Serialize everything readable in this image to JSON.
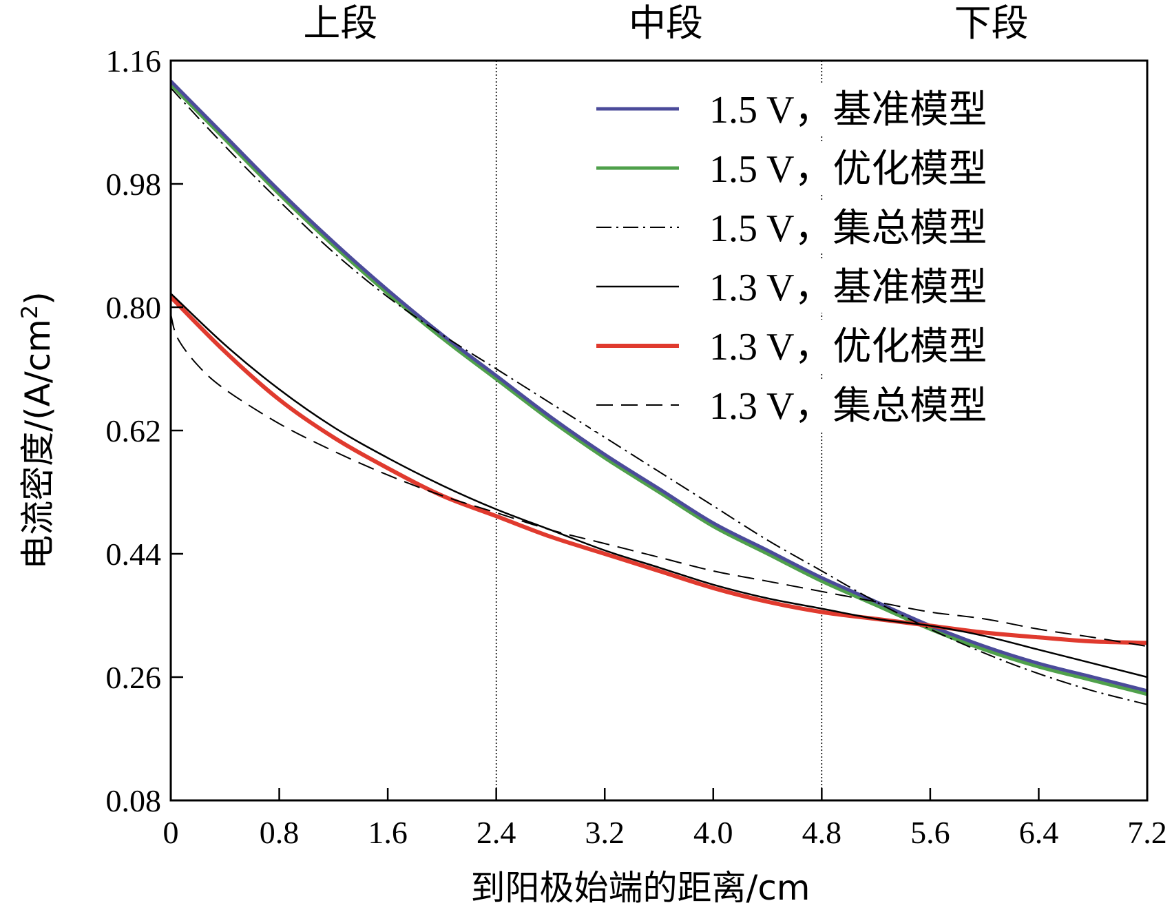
{
  "chart_data": {
    "type": "line",
    "xlabel": "到阳极始端的距离/cm",
    "ylabel": "电流密度/(A/cm",
    "ylabel_sup": "2",
    "ylabel_close": ")",
    "xlim": [
      0,
      7.2
    ],
    "ylim": [
      0.08,
      1.16
    ],
    "x_ticks": [
      0,
      0.8,
      1.6,
      2.4,
      3.2,
      4.0,
      4.8,
      5.6,
      6.4,
      7.2
    ],
    "x_tick_labels": [
      "0",
      "0.8",
      "1.6",
      "2.4",
      "3.2",
      "4.0",
      "4.8",
      "5.6",
      "6.4",
      "7.2"
    ],
    "y_ticks": [
      0.08,
      0.26,
      0.44,
      0.62,
      0.8,
      0.98,
      1.16
    ],
    "y_tick_labels": [
      "0.08",
      "0.26",
      "0.44",
      "0.62",
      "0.80",
      "0.98",
      "1.16"
    ],
    "regions": [
      {
        "label": "上段",
        "x_center": 1.2
      },
      {
        "label": "中段",
        "x_center": 3.6
      },
      {
        "label": "下段",
        "x_center": 6.0
      }
    ],
    "region_dividers": [
      2.4,
      4.8
    ],
    "legend_position": "top-right",
    "series": [
      {
        "name": "1.5 V，基准模型",
        "color": "#4b4b9a",
        "width": 5,
        "dash": "",
        "x": [
          0,
          0.4,
          0.8,
          1.2,
          1.6,
          2.0,
          2.4,
          2.8,
          3.2,
          3.6,
          4.0,
          4.4,
          4.8,
          5.2,
          5.6,
          6.0,
          6.4,
          6.8,
          7.2
        ],
        "y": [
          1.13,
          1.05,
          0.97,
          0.895,
          0.825,
          0.76,
          0.7,
          0.64,
          0.585,
          0.535,
          0.485,
          0.445,
          0.405,
          0.37,
          0.335,
          0.305,
          0.28,
          0.26,
          0.24
        ]
      },
      {
        "name": "1.5 V，优化模型",
        "color": "#4fa04b",
        "width": 5,
        "dash": "",
        "x": [
          0,
          0.4,
          0.8,
          1.2,
          1.6,
          2.0,
          2.4,
          2.8,
          3.2,
          3.6,
          4.0,
          4.4,
          4.8,
          5.2,
          5.6,
          6.0,
          6.4,
          6.8,
          7.2
        ],
        "y": [
          1.125,
          1.045,
          0.965,
          0.89,
          0.82,
          0.755,
          0.695,
          0.635,
          0.58,
          0.53,
          0.48,
          0.44,
          0.4,
          0.365,
          0.33,
          0.3,
          0.275,
          0.255,
          0.235
        ]
      },
      {
        "name": "1.5 V，集总模型",
        "color": "#000000",
        "width": 2,
        "dash": "22,7,3,7",
        "x": [
          0,
          0.4,
          0.8,
          1.2,
          1.6,
          2.0,
          2.4,
          2.8,
          3.2,
          3.6,
          4.0,
          4.4,
          4.8,
          5.2,
          5.6,
          6.0,
          6.4,
          6.8,
          7.2
        ],
        "y": [
          1.12,
          1.035,
          0.955,
          0.88,
          0.815,
          0.76,
          0.71,
          0.66,
          0.61,
          0.56,
          0.51,
          0.46,
          0.415,
          0.37,
          0.33,
          0.295,
          0.265,
          0.24,
          0.22
        ]
      },
      {
        "name": "1.3 V，基准模型",
        "color": "#000000",
        "width": 2.5,
        "dash": "",
        "x": [
          0,
          0.4,
          0.8,
          1.2,
          1.6,
          2.0,
          2.4,
          2.8,
          3.2,
          3.6,
          4.0,
          4.4,
          4.8,
          5.2,
          5.6,
          6.0,
          6.4,
          6.8,
          7.2
        ],
        "y": [
          0.82,
          0.745,
          0.68,
          0.625,
          0.58,
          0.54,
          0.505,
          0.475,
          0.445,
          0.42,
          0.395,
          0.375,
          0.36,
          0.345,
          0.335,
          0.32,
          0.3,
          0.28,
          0.26
        ]
      },
      {
        "name": "1.3 V，优化模型",
        "color": "#e03a2e",
        "width": 6,
        "dash": "",
        "x": [
          0,
          0.4,
          0.8,
          1.2,
          1.6,
          2.0,
          2.4,
          2.8,
          3.2,
          3.6,
          4.0,
          4.4,
          4.8,
          5.2,
          5.6,
          6.0,
          6.4,
          6.8,
          7.2
        ],
        "y": [
          0.815,
          0.735,
          0.665,
          0.61,
          0.565,
          0.525,
          0.495,
          0.465,
          0.44,
          0.415,
          0.39,
          0.37,
          0.355,
          0.345,
          0.335,
          0.325,
          0.318,
          0.312,
          0.31
        ]
      },
      {
        "name": "1.3 V，集总模型",
        "color": "#000000",
        "width": 2,
        "dash": "24,12",
        "x": [
          0,
          0.05,
          0.2,
          0.4,
          0.8,
          1.2,
          1.6,
          2.0,
          2.4,
          2.8,
          3.2,
          3.6,
          4.0,
          4.4,
          4.8,
          5.2,
          5.6,
          6.0,
          6.4,
          6.8,
          7.2
        ],
        "y": [
          0.79,
          0.755,
          0.715,
          0.68,
          0.63,
          0.59,
          0.555,
          0.525,
          0.5,
          0.475,
          0.455,
          0.435,
          0.415,
          0.4,
          0.385,
          0.37,
          0.355,
          0.345,
          0.33,
          0.318,
          0.305
        ]
      }
    ]
  }
}
